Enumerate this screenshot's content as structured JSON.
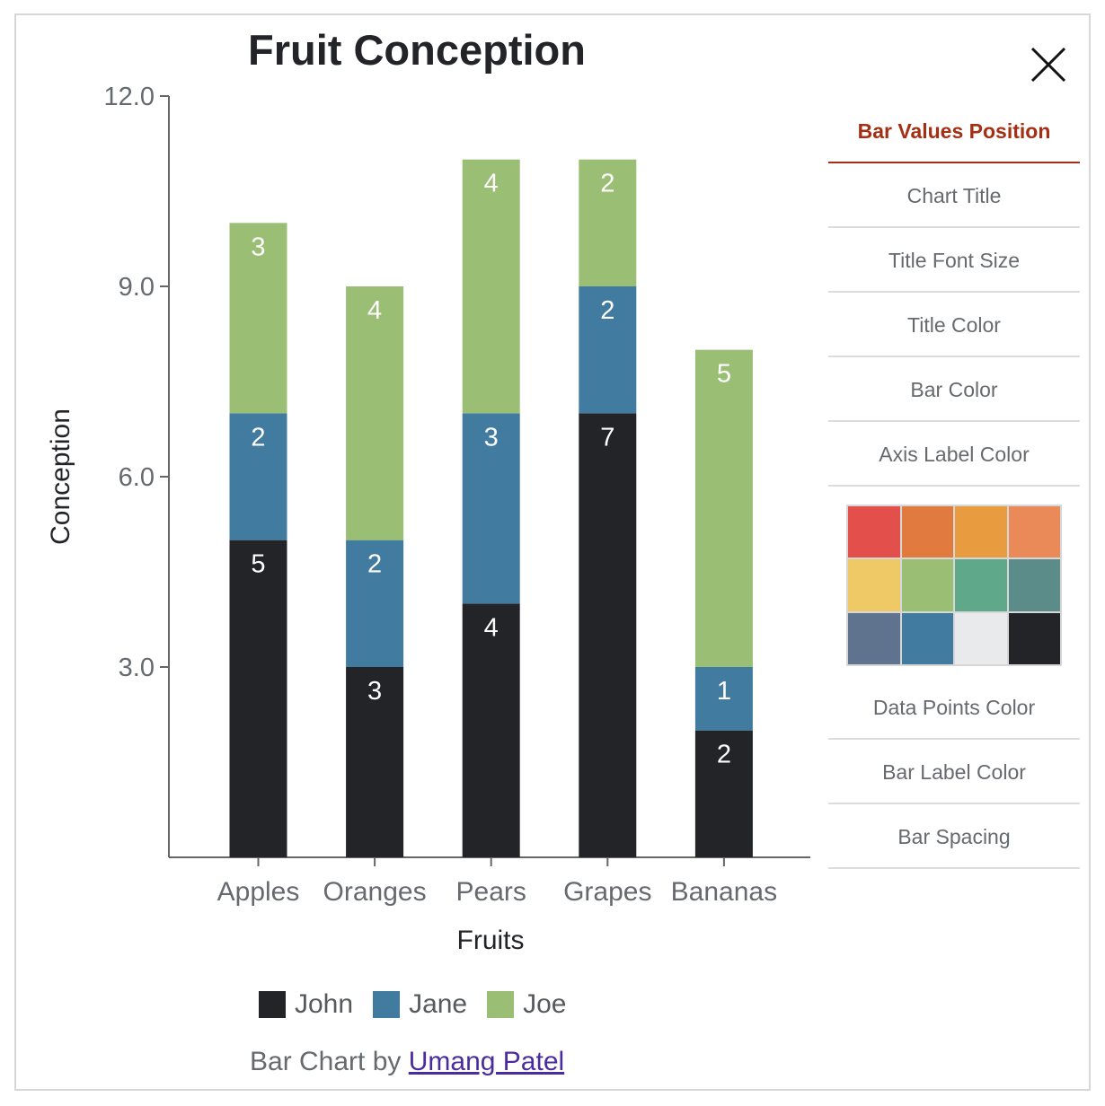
{
  "chart_data": {
    "type": "bar",
    "stacked": true,
    "title": "Fruit Conception",
    "xlabel": "Fruits",
    "ylabel": "Conception",
    "categories": [
      "Apples",
      "Oranges",
      "Pears",
      "Grapes",
      "Bananas"
    ],
    "ylim": [
      0,
      12
    ],
    "yticks": [
      "3.0",
      "6.0",
      "9.0",
      "12.0"
    ],
    "yticks_values": [
      3,
      6,
      9,
      12
    ],
    "series": [
      {
        "name": "John",
        "color": "#222428",
        "values": [
          5,
          3,
          4,
          7,
          2
        ]
      },
      {
        "name": "Jane",
        "color": "#427ba0",
        "values": [
          2,
          2,
          3,
          2,
          1
        ]
      },
      {
        "name": "Joe",
        "color": "#9bbe75",
        "values": [
          3,
          4,
          4,
          2,
          5
        ]
      }
    ],
    "value_label_color": "#ffffff",
    "grid": false,
    "legend_position": "bottom"
  },
  "close_icon": "close-icon",
  "menu": {
    "items": [
      {
        "label": "Bar Values Position",
        "active": true
      },
      {
        "label": "Chart Title"
      },
      {
        "label": "Title Font Size"
      },
      {
        "label": "Title Color"
      },
      {
        "label": "Bar Color"
      },
      {
        "label": "Axis Label Color"
      },
      {
        "label": "Data Points Color"
      },
      {
        "label": "Bar Label Color"
      },
      {
        "label": "Bar Spacing"
      }
    ],
    "active_color": "#a33015"
  },
  "palette": {
    "colors": [
      "#e3504b",
      "#e07a3f",
      "#e89b3f",
      "#ea8a59",
      "#efc965",
      "#9bbe75",
      "#5fa98a",
      "#5b8c8a",
      "#5f738f",
      "#427ba0",
      "#e8eaec",
      "#222428"
    ]
  },
  "credit": {
    "prefix": "Bar Chart by",
    "link_text": "Umang Patel",
    "link_color": "#4b2c9e"
  }
}
